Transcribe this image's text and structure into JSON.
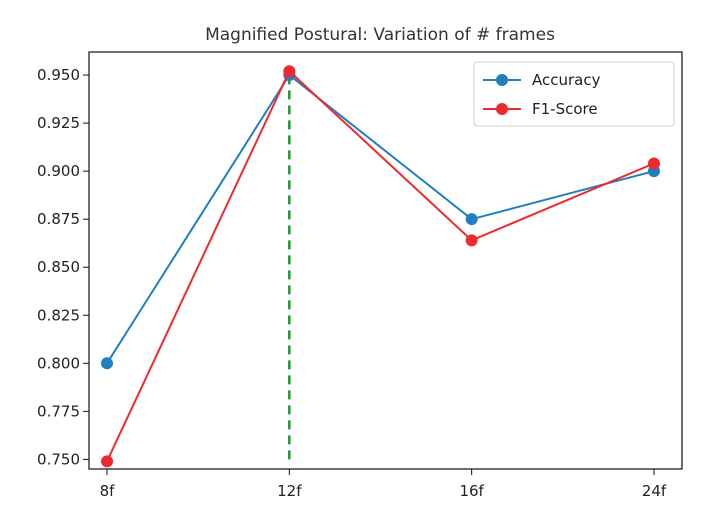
{
  "chart_data": {
    "type": "line",
    "title": "Magnified Postural: Variation of # frames",
    "categories": [
      "8f",
      "12f",
      "16f",
      "24f"
    ],
    "y_ticks": [
      "0.750",
      "0.775",
      "0.800",
      "0.825",
      "0.850",
      "0.875",
      "0.900",
      "0.925",
      "0.950"
    ],
    "ylim": [
      0.745,
      0.962
    ],
    "grid": false,
    "legend_position": "top-right",
    "series": [
      {
        "name": "Accuracy",
        "values": [
          0.8,
          0.95,
          0.875,
          0.9
        ],
        "color": "#1f7fc0"
      },
      {
        "name": "F1-Score",
        "values": [
          0.749,
          0.952,
          0.864,
          0.904
        ],
        "color": "#ee2a2f"
      }
    ],
    "reference_line": {
      "category": "12f",
      "from": 0.75,
      "to": 0.95,
      "color": "#1a9a2a",
      "style": "dashed"
    }
  }
}
